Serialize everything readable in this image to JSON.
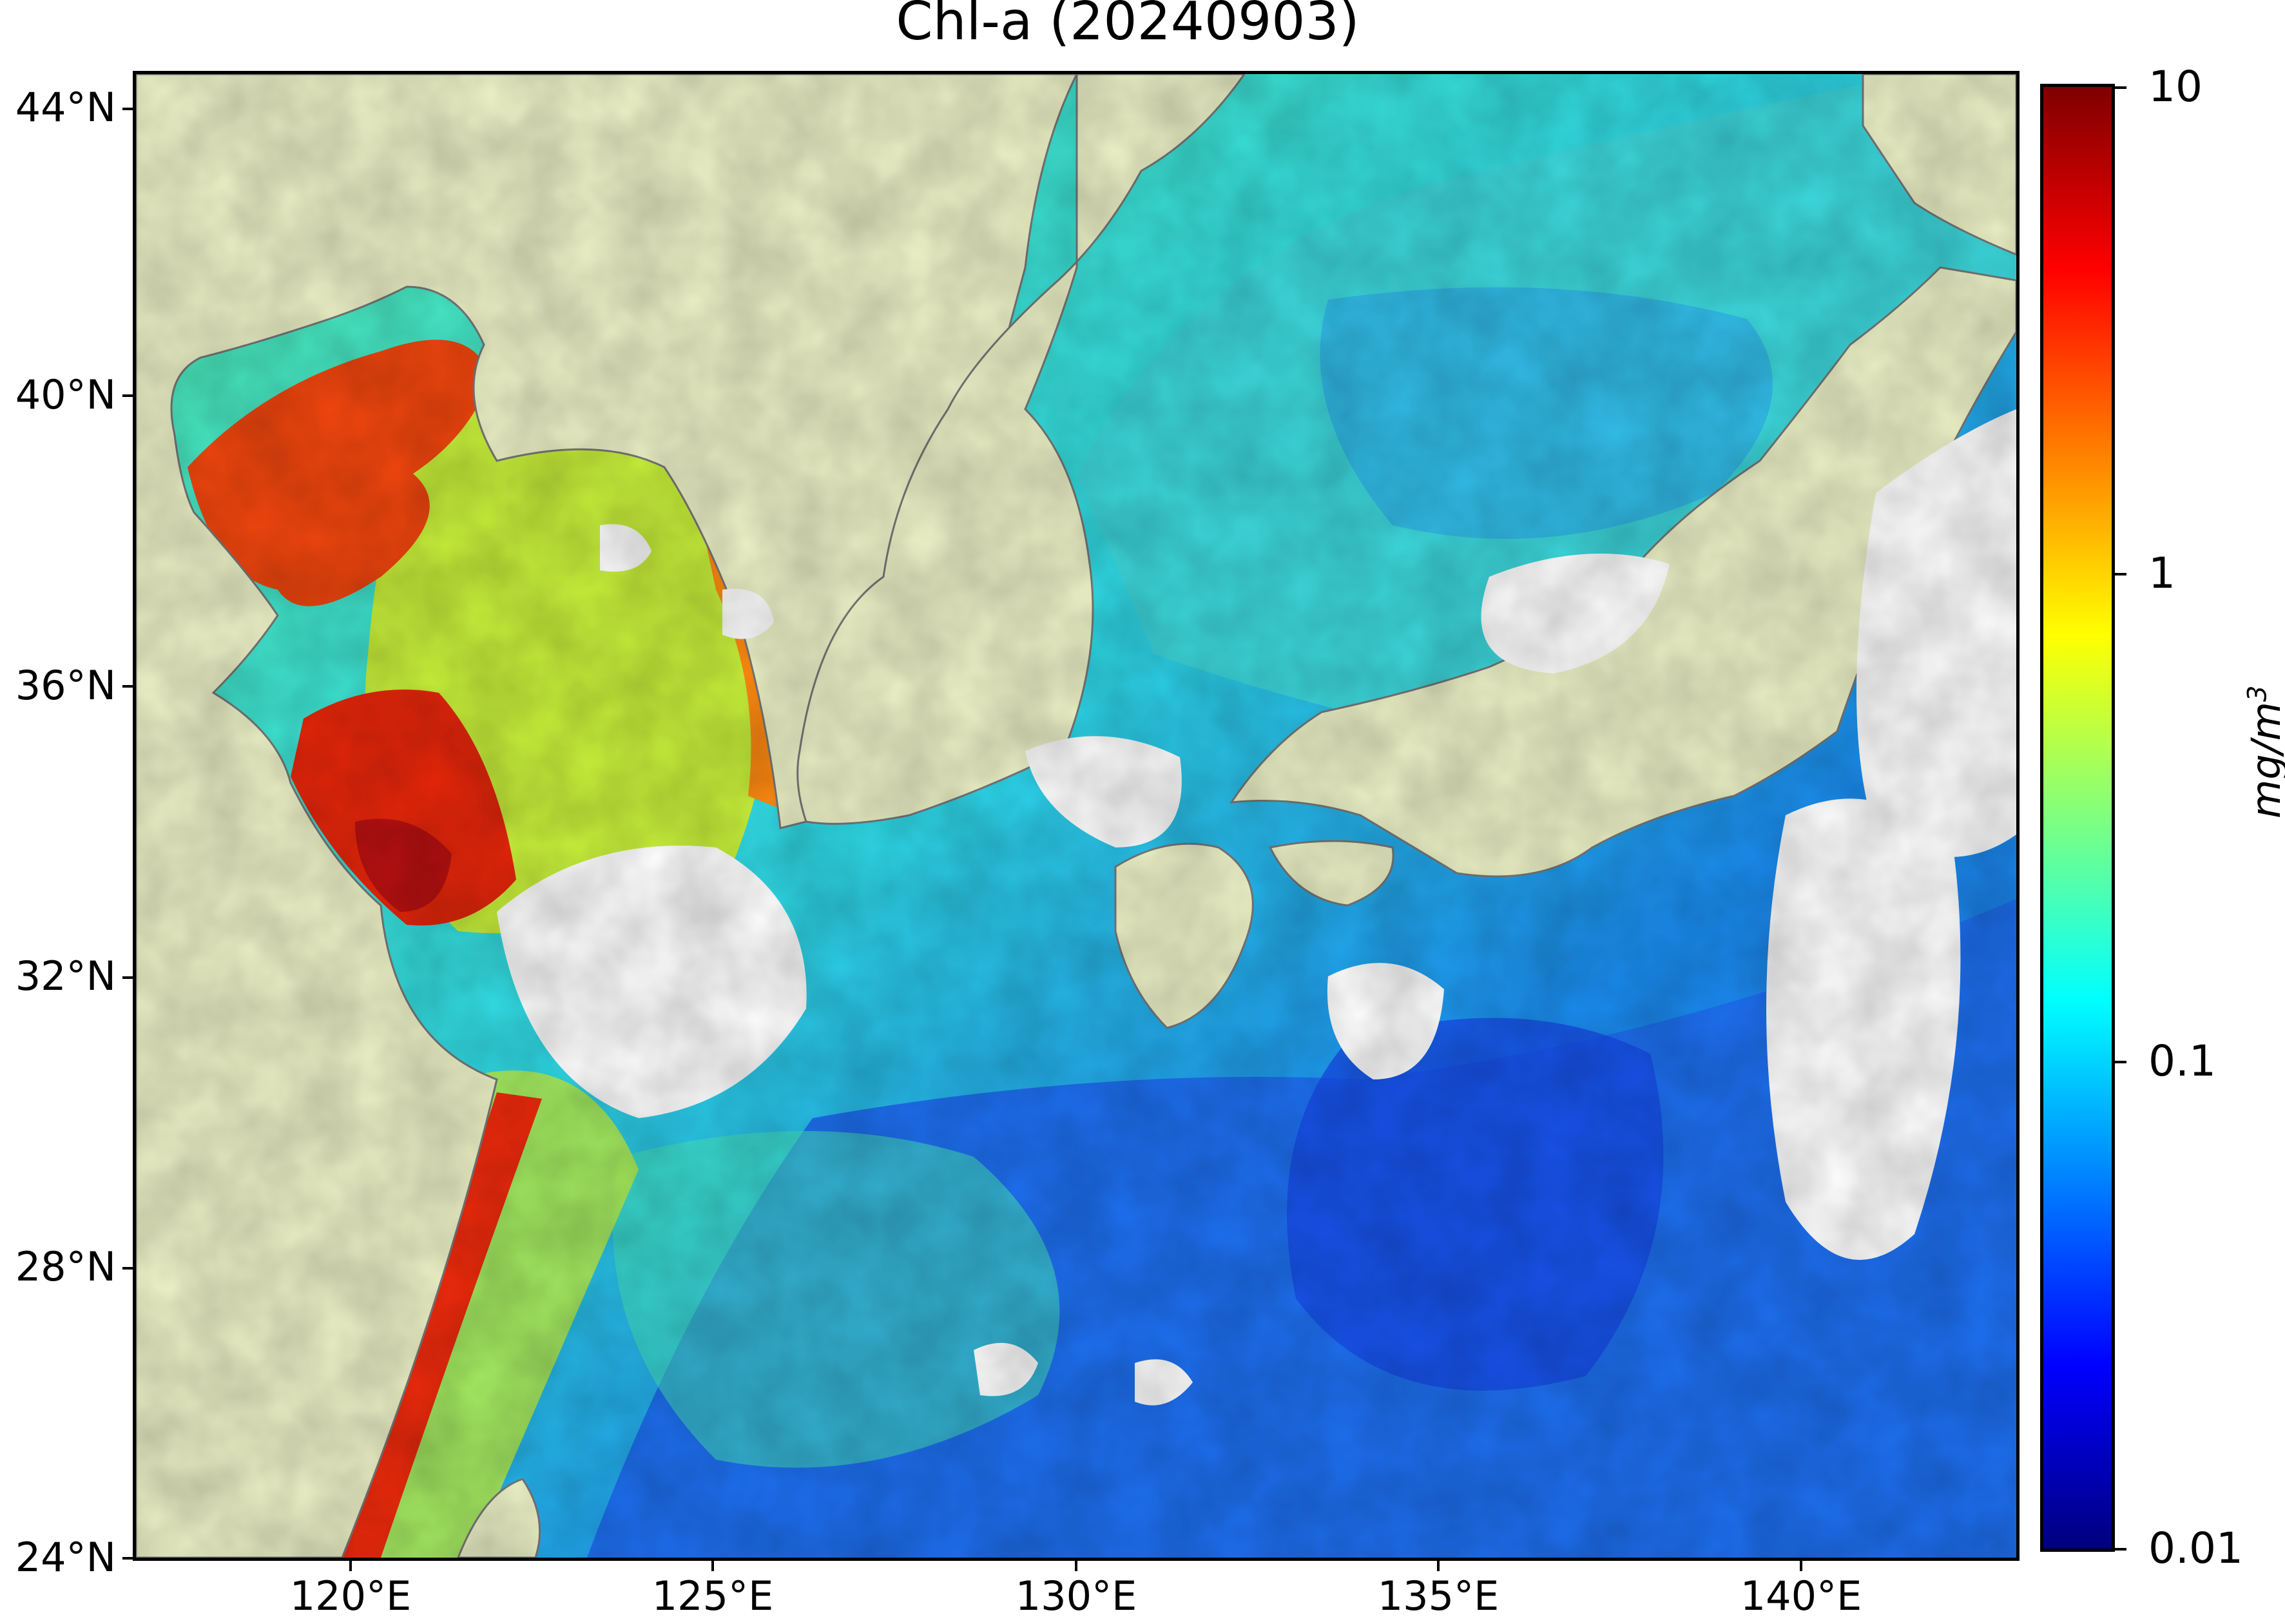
{
  "title": "Chl-a (20240903)",
  "map": {
    "lon_range": [
      117,
      143
    ],
    "lat_range": [
      24,
      44.5
    ],
    "projection": "plate carree",
    "land_color": "#edf2c7",
    "no_data_color": "#ffffff",
    "variable": "Chl-a"
  },
  "axes": {
    "y_ticks": [
      "44°N",
      "40°N",
      "36°N",
      "32°N",
      "28°N",
      "24°N"
    ],
    "x_ticks": [
      "120°E",
      "125°E",
      "130°E",
      "135°E",
      "140°E"
    ]
  },
  "colorbar": {
    "label": "mg/m",
    "label_superscript": "3",
    "scale": "log",
    "range": [
      0.01,
      10
    ],
    "tick_labels": [
      "10",
      "1",
      "0.1",
      "0.01"
    ],
    "colormap": "jet",
    "colors": [
      "#00007f",
      "#0000ff",
      "#007fff",
      "#00ffff",
      "#7fff7f",
      "#ffff00",
      "#ff7f00",
      "#ff0000",
      "#7f0000"
    ]
  }
}
